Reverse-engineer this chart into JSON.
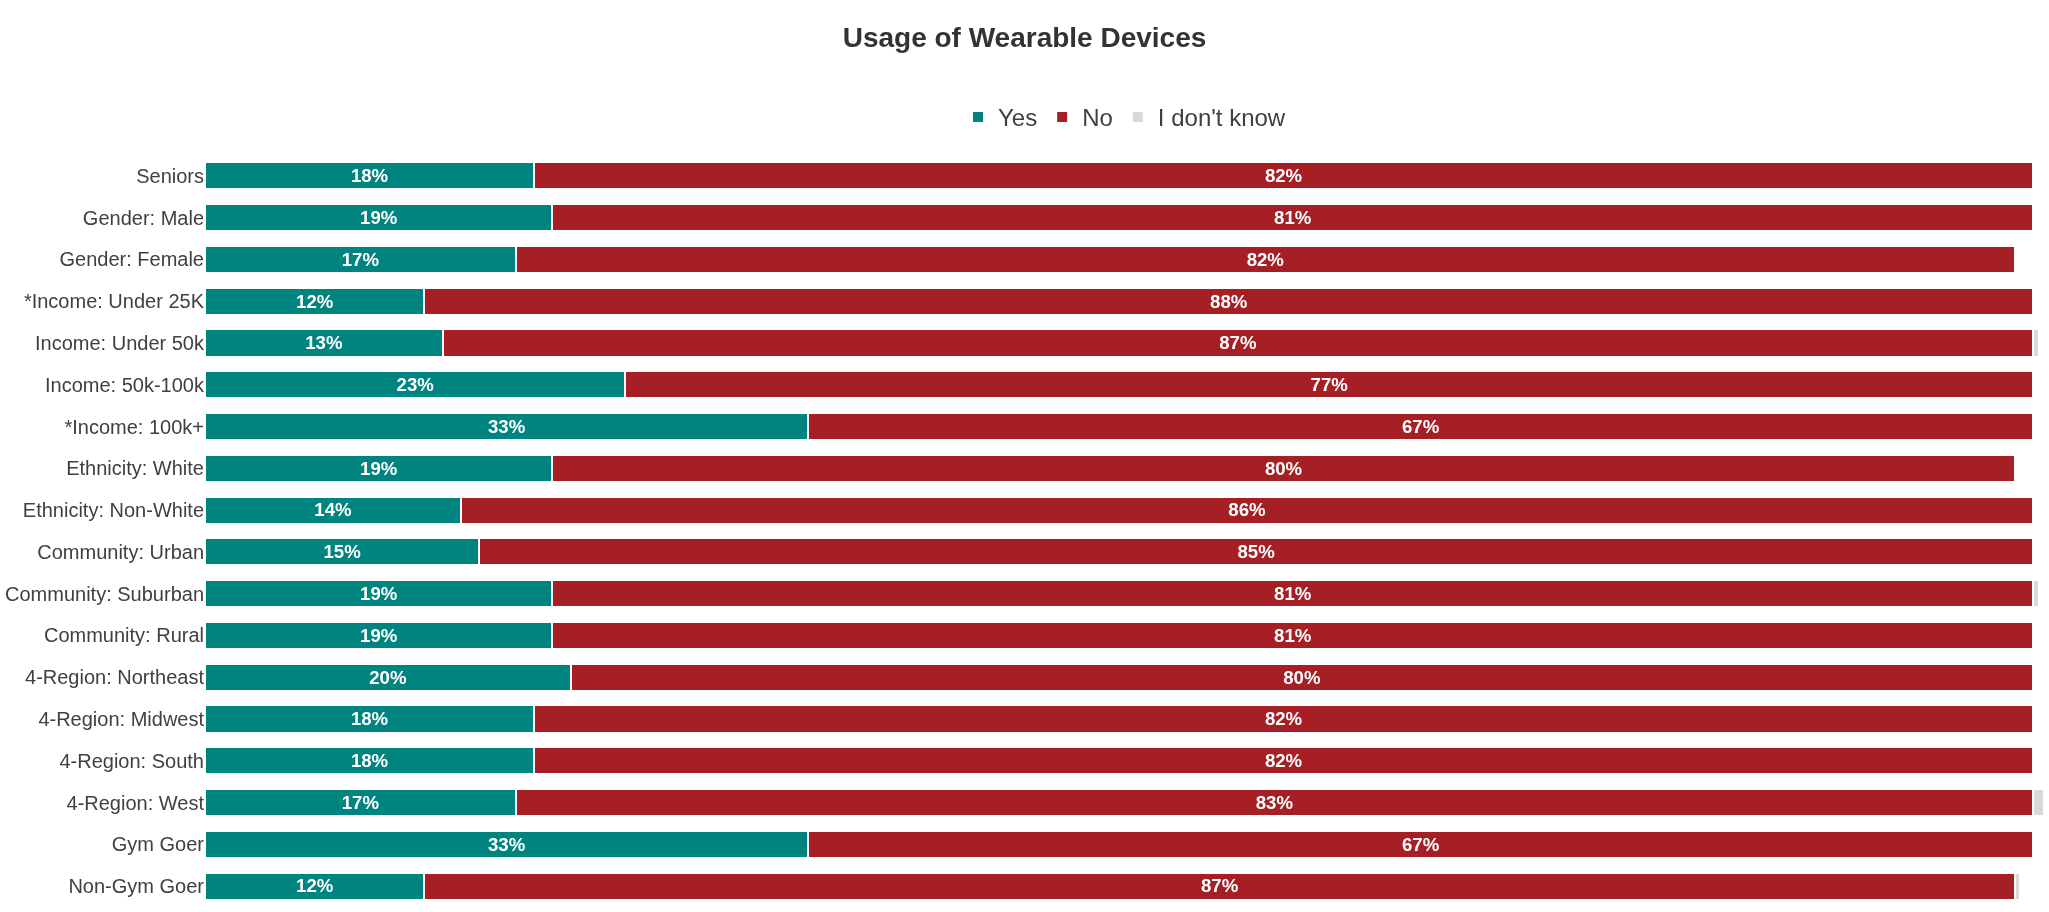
{
  "chart_data": {
    "type": "bar",
    "orientation": "horizontal",
    "stacked": true,
    "title": "Usage of Wearable Devices",
    "legend": "top",
    "categories": [
      "Seniors",
      "Gender: Male",
      "Gender: Female",
      "*Income: Under 25K",
      "Income: Under 50k",
      "Income: 50k-100k",
      "*Income: 100k+",
      "Ethnicity: White",
      "Ethnicity: Non-White",
      "Community: Urban",
      "Community: Suburban",
      "Community: Rural",
      "4-Region: Northeast",
      "4-Region: Midwest",
      "4-Region: South",
      "4-Region: West",
      "Gym Goer",
      "Non-Gym Goer"
    ],
    "series": [
      {
        "name": "Yes",
        "color": "#00847f",
        "values": [
          18,
          19,
          17,
          12,
          13,
          23,
          33,
          19,
          14,
          15,
          19,
          19,
          20,
          18,
          18,
          17,
          33,
          12
        ],
        "value_labels": [
          "18%",
          "19%",
          "17%",
          "12%",
          "13%",
          "23%",
          "33%",
          "19%",
          "14%",
          "15%",
          "19%",
          "19%",
          "20%",
          "18%",
          "18%",
          "17%",
          "33%",
          "12%"
        ]
      },
      {
        "name": "No",
        "color": "#a51f24",
        "values": [
          82,
          81,
          82,
          88,
          87,
          77,
          67,
          80,
          86,
          85,
          81,
          81,
          80,
          82,
          82,
          83,
          67,
          87
        ],
        "value_labels": [
          "82%",
          "81%",
          "82%",
          "88%",
          "87%",
          "77%",
          "67%",
          "80%",
          "86%",
          "85%",
          "81%",
          "81%",
          "80%",
          "82%",
          "82%",
          "83%",
          "67%",
          "87%"
        ]
      },
      {
        "name": "I don't know",
        "color": "#d9d9d9",
        "values": [
          null,
          null,
          null,
          null,
          0.3,
          null,
          null,
          null,
          null,
          null,
          0.3,
          null,
          null,
          null,
          null,
          0.6,
          null,
          0.3
        ]
      }
    ]
  }
}
